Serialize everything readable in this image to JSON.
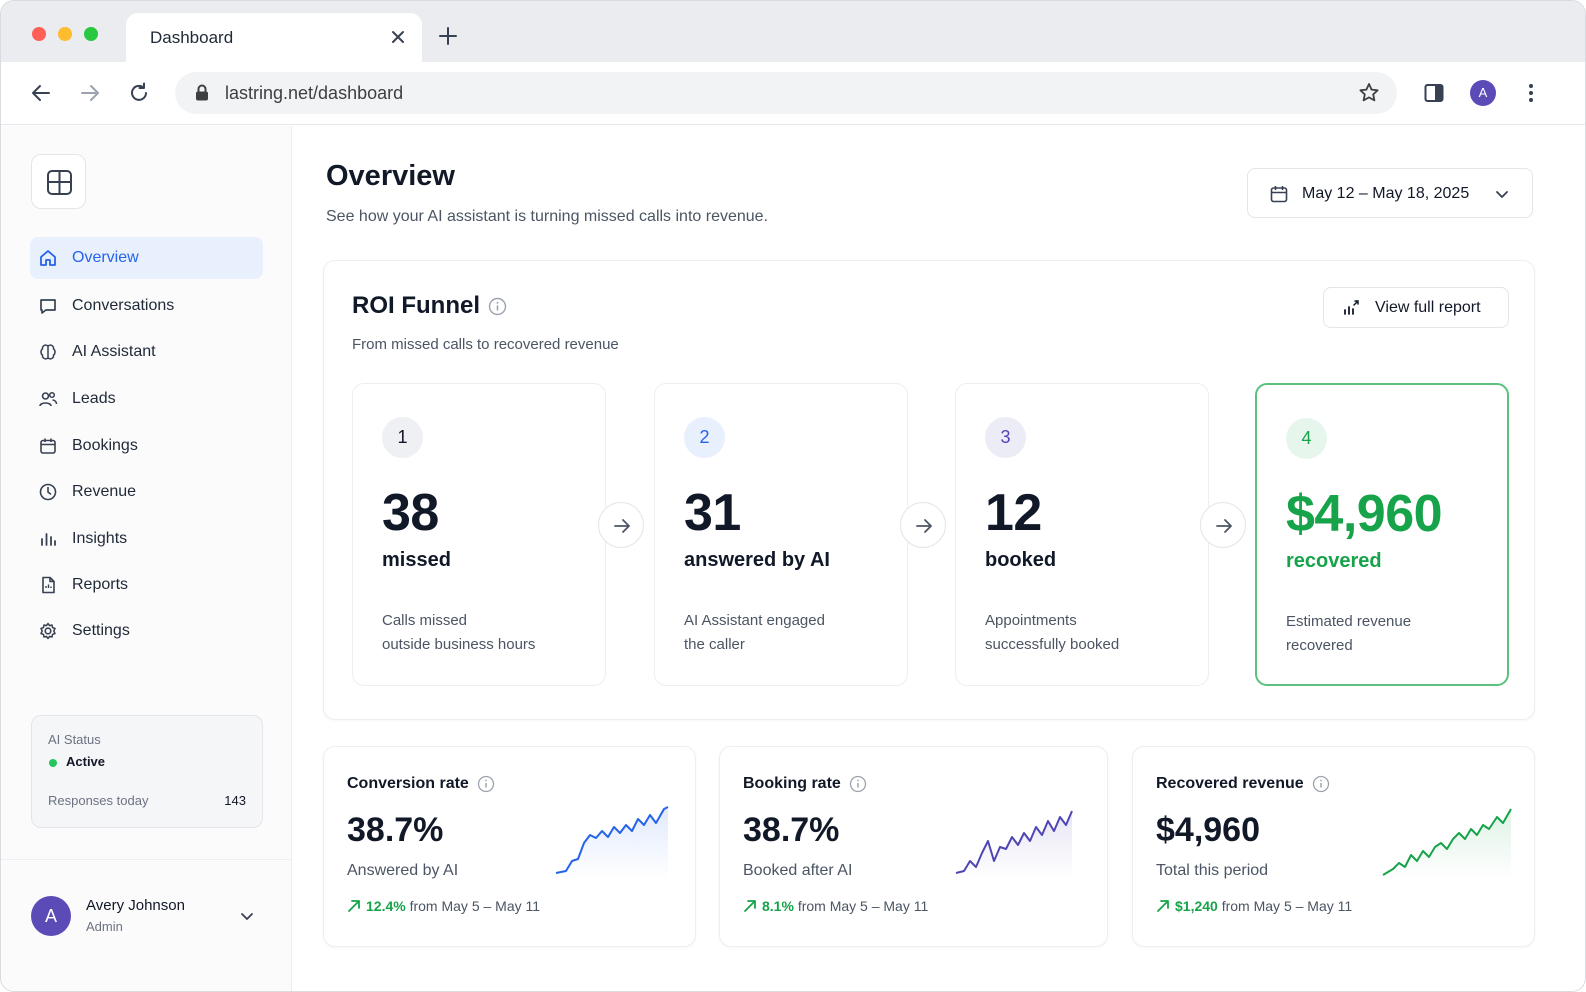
{
  "browser": {
    "tab_title": "Dashboard",
    "url": "lastring.net/dashboard",
    "profile_initial": "A"
  },
  "sidebar": {
    "items": [
      {
        "label": "Overview",
        "icon": "home-icon"
      },
      {
        "label": "Conversations",
        "icon": "chat-icon"
      },
      {
        "label": "AI Assistant",
        "icon": "brain-icon"
      },
      {
        "label": "Leads",
        "icon": "users-icon"
      },
      {
        "label": "Bookings",
        "icon": "calendar-icon"
      },
      {
        "label": "Revenue",
        "icon": "revenue-icon"
      },
      {
        "label": "Insights",
        "icon": "bar-chart-icon"
      },
      {
        "label": "Reports",
        "icon": "report-icon"
      },
      {
        "label": "Settings",
        "icon": "gear-icon"
      }
    ],
    "active_item": "Overview",
    "status": {
      "label": "AI Status",
      "value": "Active",
      "responses_label": "Responses today",
      "responses_value": "143"
    },
    "user": {
      "initial": "A",
      "name": "Avery Johnson",
      "role": "Admin"
    }
  },
  "header": {
    "title": "Overview",
    "subtitle": "See how your AI assistant is turning missed calls into revenue.",
    "date_range": "May 12 – May 18, 2025"
  },
  "funnel": {
    "title": "ROI Funnel",
    "subtitle": "From missed calls to recovered revenue",
    "report_button": "View full report",
    "steps": [
      {
        "number": "1",
        "value": "38",
        "label": "missed",
        "desc1": "Calls missed",
        "desc2": "outside business hours"
      },
      {
        "number": "2",
        "value": "31",
        "label": "answered by AI",
        "desc1": "AI Assistant engaged",
        "desc2": "the caller"
      },
      {
        "number": "3",
        "value": "12",
        "label": "booked",
        "desc1": "Appointments",
        "desc2": "successfully booked"
      },
      {
        "number": "4",
        "value": "$4,960",
        "label": "recovered",
        "desc1": "Estimated revenue",
        "desc2": "recovered"
      }
    ]
  },
  "metrics": [
    {
      "title": "Conversion rate",
      "value": "38.7%",
      "sub": "Answered by AI",
      "delta": "12.4%",
      "period": "from May 5 – May 11"
    },
    {
      "title": "Booking rate",
      "value": "38.7%",
      "sub": "Booked after AI",
      "delta": "8.1%",
      "period": "from May 5 – May 11"
    },
    {
      "title": "Recovered revenue",
      "value": "$4,960",
      "sub": "Total this period",
      "delta": "$1,240",
      "period": "from May 5 – May 11"
    }
  ],
  "colors": {
    "accent_blue": "#2563eb",
    "accent_green": "#16a34a",
    "accent_purple": "#4f46b5",
    "active_nav_bg": "#e9f0fd"
  }
}
